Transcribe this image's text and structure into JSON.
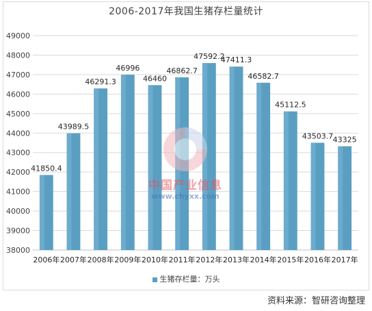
{
  "chart_data": {
    "type": "bar",
    "title": "2006-2017年我国生猪存栏量统计",
    "categories": [
      "2006年",
      "2007年",
      "2008年",
      "2009年",
      "2010年",
      "2011年",
      "2012年",
      "2013年",
      "2014年",
      "2015年",
      "2016年",
      "2017年"
    ],
    "series": [
      {
        "name": "生猪存栏量：万头",
        "values": [
          41850.4,
          43989.5,
          46291.3,
          46996,
          46460,
          46862.7,
          47592.2,
          47411.3,
          46582.7,
          45112.5,
          43503.7,
          43325
        ],
        "labels": [
          "41850.4",
          "43989.5",
          "46291.3",
          "46996",
          "46460",
          "46862.7",
          "47592.2",
          "47411.3",
          "46582.7",
          "45112.5",
          "43503.7",
          "43325"
        ]
      }
    ],
    "ylim": [
      38000,
      49000
    ],
    "yticks": [
      38000,
      39000,
      40000,
      41000,
      42000,
      43000,
      44000,
      45000,
      46000,
      47000,
      48000,
      49000
    ],
    "grid": true,
    "legend_position": "bottom",
    "bar_color": "#5a9fc2"
  },
  "watermark": {
    "cn": "中国产业信息",
    "url": "www.chyxx.com"
  },
  "source": "资料来源：智研咨询整理"
}
